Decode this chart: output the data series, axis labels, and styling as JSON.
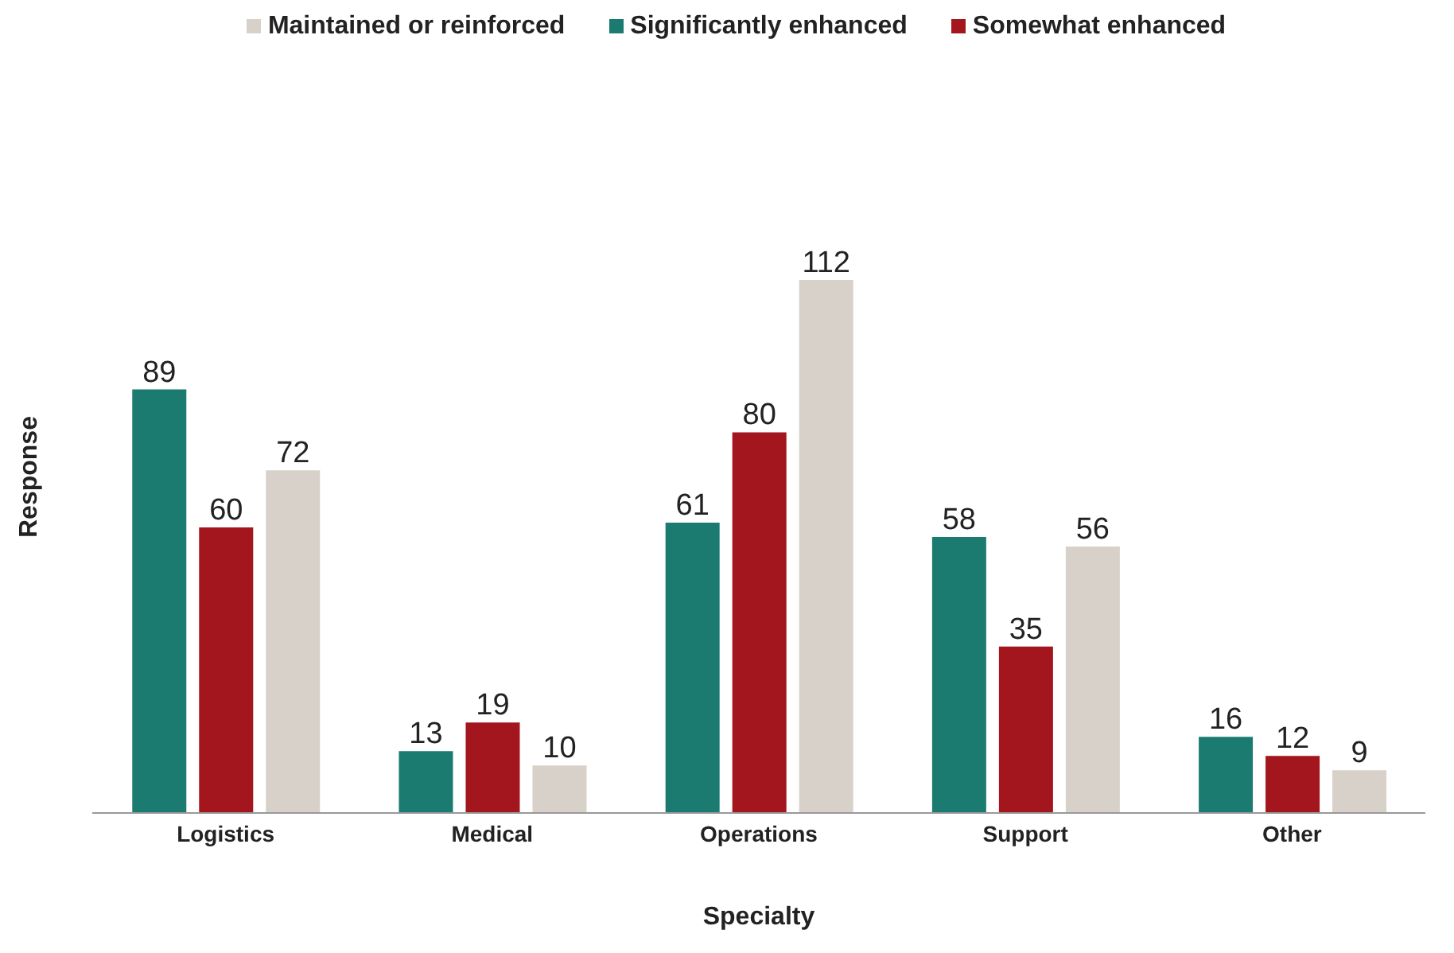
{
  "chart_data": {
    "type": "bar",
    "xlabel": "Specialty",
    "ylabel": "Response",
    "categories": [
      "Logistics",
      "Medical",
      "Operations",
      "Support",
      "Other"
    ],
    "series": [
      {
        "name": "Significantly enhanced",
        "color": "#1b7b70",
        "values": [
          89,
          13,
          61,
          58,
          16
        ]
      },
      {
        "name": "Somewhat enhanced",
        "color": "#a3161d",
        "values": [
          60,
          19,
          80,
          35,
          12
        ]
      },
      {
        "name": "Maintained or reinforced",
        "color": "#d8d1ca",
        "values": [
          72,
          10,
          112,
          56,
          9
        ]
      }
    ],
    "data_labels": true,
    "grid": false,
    "legend": "top"
  }
}
